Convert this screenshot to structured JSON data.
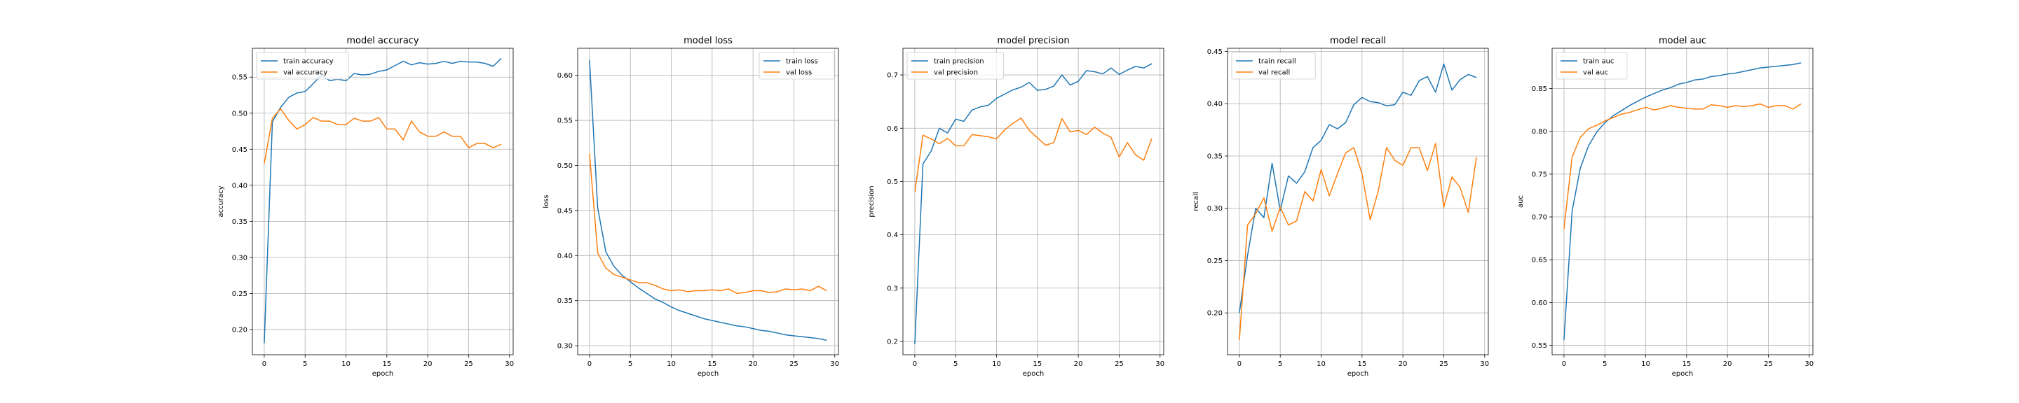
{
  "series_colors": [
    "#1f77b4",
    "#ff7f0e"
  ],
  "chart_data": [
    {
      "type": "line",
      "title": "model accuracy",
      "xlabel": "epoch",
      "ylabel": "accuracy",
      "xlim": [
        -1.45,
        30.45
      ],
      "ylim": [
        0.165,
        0.59
      ],
      "xticks": [
        0,
        5,
        10,
        15,
        20,
        25,
        30
      ],
      "yticks": [
        0.2,
        0.25,
        0.3,
        0.35,
        0.4,
        0.45,
        0.5,
        0.55
      ],
      "ytick_labels": [
        "0.20",
        "0.25",
        "0.30",
        "0.35",
        "0.40",
        "0.45",
        "0.50",
        "0.55"
      ],
      "grid": true,
      "legend_loc": "upper left",
      "x": [
        0,
        1,
        2,
        3,
        4,
        5,
        6,
        7,
        8,
        9,
        10,
        11,
        12,
        13,
        14,
        15,
        16,
        17,
        18,
        19,
        20,
        21,
        22,
        23,
        24,
        25,
        26,
        27,
        28,
        29
      ],
      "series": [
        {
          "name": "train accuracy",
          "values": [
            0.181,
            0.488,
            0.508,
            0.522,
            0.528,
            0.53,
            0.541,
            0.553,
            0.545,
            0.547,
            0.545,
            0.555,
            0.553,
            0.554,
            0.558,
            0.56,
            0.566,
            0.572,
            0.567,
            0.57,
            0.568,
            0.569,
            0.572,
            0.569,
            0.572,
            0.571,
            0.571,
            0.569,
            0.565,
            0.576
          ]
        },
        {
          "name": "val accuracy",
          "values": [
            0.43,
            0.493,
            0.506,
            0.49,
            0.478,
            0.484,
            0.494,
            0.489,
            0.489,
            0.484,
            0.484,
            0.493,
            0.489,
            0.489,
            0.494,
            0.478,
            0.478,
            0.463,
            0.489,
            0.474,
            0.468,
            0.468,
            0.474,
            0.468,
            0.468,
            0.452,
            0.458,
            0.458,
            0.452,
            0.457
          ]
        }
      ]
    },
    {
      "type": "line",
      "title": "model loss",
      "xlabel": "epoch",
      "ylabel": "loss",
      "xlim": [
        -1.45,
        30.45
      ],
      "ylim": [
        0.29,
        0.63
      ],
      "xticks": [
        0,
        5,
        10,
        15,
        20,
        25,
        30
      ],
      "yticks": [
        0.3,
        0.35,
        0.4,
        0.45,
        0.5,
        0.55,
        0.6
      ],
      "ytick_labels": [
        "0.30",
        "0.35",
        "0.40",
        "0.45",
        "0.50",
        "0.55",
        "0.60"
      ],
      "grid": true,
      "legend_loc": "upper right",
      "x": [
        0,
        1,
        2,
        3,
        4,
        5,
        6,
        7,
        8,
        9,
        10,
        11,
        12,
        13,
        14,
        15,
        16,
        17,
        18,
        19,
        20,
        21,
        22,
        23,
        24,
        25,
        26,
        27,
        28,
        29
      ],
      "series": [
        {
          "name": "train loss",
          "values": [
            0.617,
            0.453,
            0.404,
            0.388,
            0.378,
            0.371,
            0.364,
            0.358,
            0.352,
            0.348,
            0.343,
            0.339,
            0.336,
            0.333,
            0.33,
            0.328,
            0.326,
            0.324,
            0.322,
            0.321,
            0.319,
            0.317,
            0.316,
            0.314,
            0.312,
            0.311,
            0.31,
            0.309,
            0.308,
            0.306
          ]
        },
        {
          "name": "val loss",
          "values": [
            0.513,
            0.403,
            0.386,
            0.379,
            0.376,
            0.373,
            0.37,
            0.37,
            0.367,
            0.363,
            0.361,
            0.362,
            0.36,
            0.361,
            0.361,
            0.362,
            0.361,
            0.363,
            0.358,
            0.359,
            0.361,
            0.361,
            0.359,
            0.36,
            0.363,
            0.362,
            0.363,
            0.361,
            0.366,
            0.361
          ]
        }
      ]
    },
    {
      "type": "line",
      "title": "model precision",
      "xlabel": "epoch",
      "ylabel": "precision",
      "xlim": [
        -1.45,
        30.45
      ],
      "ylim": [
        0.175,
        0.75
      ],
      "xticks": [
        0,
        5,
        10,
        15,
        20,
        25,
        30
      ],
      "yticks": [
        0.2,
        0.3,
        0.4,
        0.5,
        0.6,
        0.7
      ],
      "ytick_labels": [
        "0.2",
        "0.3",
        "0.4",
        "0.5",
        "0.6",
        "0.7"
      ],
      "grid": true,
      "legend_loc": "upper left",
      "x": [
        0,
        1,
        2,
        3,
        4,
        5,
        6,
        7,
        8,
        9,
        10,
        11,
        12,
        13,
        14,
        15,
        16,
        17,
        18,
        19,
        20,
        21,
        22,
        23,
        24,
        25,
        26,
        27,
        28,
        29
      ],
      "series": [
        {
          "name": "train precision",
          "values": [
            0.195,
            0.533,
            0.557,
            0.6,
            0.591,
            0.617,
            0.613,
            0.634,
            0.64,
            0.643,
            0.656,
            0.664,
            0.672,
            0.677,
            0.686,
            0.671,
            0.673,
            0.679,
            0.7,
            0.681,
            0.688,
            0.708,
            0.706,
            0.702,
            0.713,
            0.701,
            0.709,
            0.716,
            0.713,
            0.721
          ]
        },
        {
          "name": "val precision",
          "values": [
            0.48,
            0.587,
            0.58,
            0.571,
            0.581,
            0.567,
            0.567,
            0.588,
            0.586,
            0.584,
            0.58,
            0.597,
            0.609,
            0.619,
            0.596,
            0.582,
            0.568,
            0.573,
            0.618,
            0.593,
            0.596,
            0.588,
            0.602,
            0.591,
            0.583,
            0.546,
            0.573,
            0.55,
            0.54,
            0.581
          ]
        }
      ]
    },
    {
      "type": "line",
      "title": "model recall",
      "xlabel": "epoch",
      "ylabel": "recall",
      "xlim": [
        -1.45,
        30.45
      ],
      "ylim": [
        0.16,
        0.453
      ],
      "xticks": [
        0,
        5,
        10,
        15,
        20,
        25,
        30
      ],
      "yticks": [
        0.2,
        0.25,
        0.3,
        0.35,
        0.4,
        0.45
      ],
      "ytick_labels": [
        "0.20",
        "0.25",
        "0.30",
        "0.35",
        "0.40",
        "0.45"
      ],
      "grid": true,
      "legend_loc": "upper left",
      "x": [
        0,
        1,
        2,
        3,
        4,
        5,
        6,
        7,
        8,
        9,
        10,
        11,
        12,
        13,
        14,
        15,
        16,
        17,
        18,
        19,
        20,
        21,
        22,
        23,
        24,
        25,
        26,
        27,
        28,
        29
      ],
      "series": [
        {
          "name": "train recall",
          "values": [
            0.2,
            0.255,
            0.3,
            0.291,
            0.343,
            0.298,
            0.331,
            0.324,
            0.335,
            0.358,
            0.365,
            0.38,
            0.376,
            0.382,
            0.399,
            0.406,
            0.402,
            0.401,
            0.398,
            0.399,
            0.411,
            0.408,
            0.422,
            0.426,
            0.411,
            0.438,
            0.413,
            0.423,
            0.428,
            0.425
          ]
        },
        {
          "name": "val recall",
          "values": [
            0.174,
            0.284,
            0.295,
            0.31,
            0.278,
            0.301,
            0.284,
            0.288,
            0.316,
            0.307,
            0.337,
            0.312,
            0.333,
            0.353,
            0.358,
            0.333,
            0.289,
            0.317,
            0.358,
            0.346,
            0.341,
            0.358,
            0.358,
            0.336,
            0.362,
            0.301,
            0.33,
            0.32,
            0.296,
            0.349
          ]
        }
      ]
    },
    {
      "type": "line",
      "title": "model auc",
      "xlabel": "epoch",
      "ylabel": "auc",
      "xlim": [
        -1.45,
        30.45
      ],
      "ylim": [
        0.539,
        0.897
      ],
      "xticks": [
        0,
        5,
        10,
        15,
        20,
        25,
        30
      ],
      "yticks": [
        0.55,
        0.6,
        0.65,
        0.7,
        0.75,
        0.8,
        0.85
      ],
      "ytick_labels": [
        "0.55",
        "0.60",
        "0.65",
        "0.70",
        "0.75",
        "0.80",
        "0.85"
      ],
      "grid": true,
      "legend_loc": "upper left",
      "x": [
        0,
        1,
        2,
        3,
        4,
        5,
        6,
        7,
        8,
        9,
        10,
        11,
        12,
        13,
        14,
        15,
        16,
        17,
        18,
        19,
        20,
        21,
        22,
        23,
        24,
        25,
        26,
        27,
        28,
        29
      ],
      "series": [
        {
          "name": "train auc",
          "values": [
            0.556,
            0.707,
            0.757,
            0.783,
            0.799,
            0.81,
            0.818,
            0.824,
            0.83,
            0.835,
            0.84,
            0.844,
            0.848,
            0.851,
            0.855,
            0.857,
            0.86,
            0.861,
            0.864,
            0.865,
            0.867,
            0.868,
            0.87,
            0.872,
            0.874,
            0.875,
            0.876,
            0.877,
            0.878,
            0.88
          ]
        },
        {
          "name": "val auc",
          "values": [
            0.686,
            0.77,
            0.793,
            0.803,
            0.807,
            0.812,
            0.816,
            0.82,
            0.822,
            0.825,
            0.828,
            0.825,
            0.827,
            0.83,
            0.828,
            0.827,
            0.826,
            0.826,
            0.831,
            0.83,
            0.828,
            0.83,
            0.829,
            0.83,
            0.832,
            0.828,
            0.83,
            0.83,
            0.826,
            0.832
          ]
        }
      ]
    }
  ]
}
